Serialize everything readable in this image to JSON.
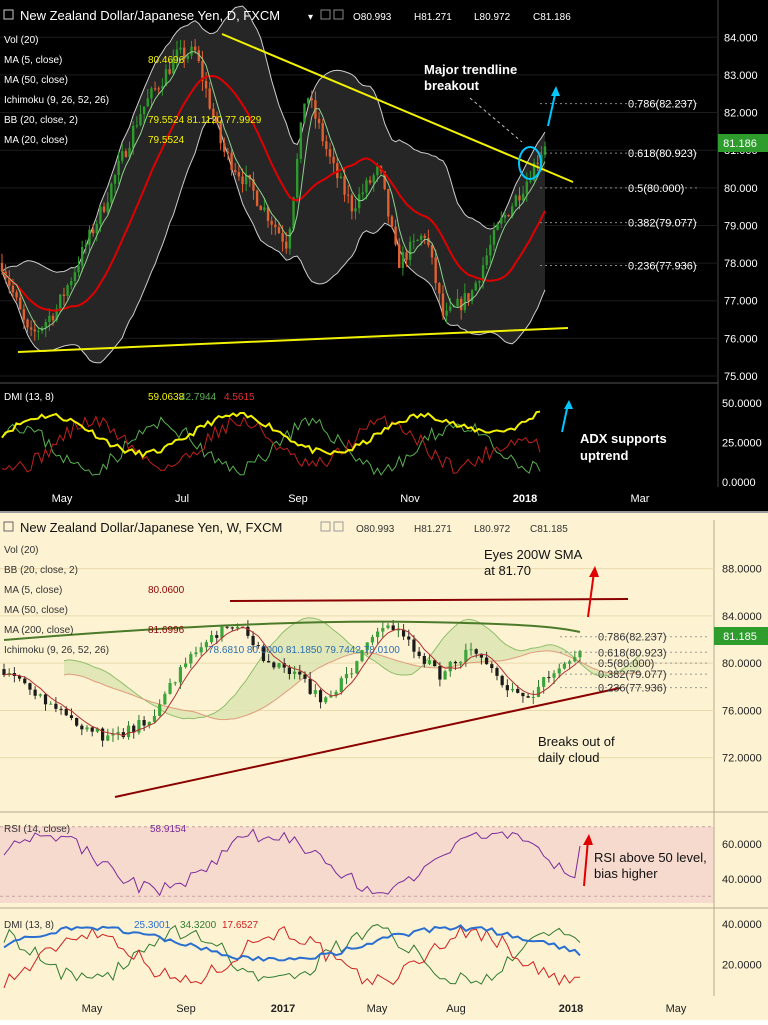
{
  "daily": {
    "title": "New Zealand Dollar/Japanese Yen, D, FXCM",
    "ohlc": {
      "open": "O80.993",
      "high": "H81.271",
      "low": "L80.972",
      "close": "C81.186"
    },
    "legend": [
      {
        "name": "Vol (20)",
        "value": ""
      },
      {
        "name": "MA (5, close)",
        "value": "80.4696"
      },
      {
        "name": "MA (50, close)",
        "value": ""
      },
      {
        "name": "Ichimoku (9, 26, 52, 26)",
        "value": ""
      },
      {
        "name": "BB (20, close, 2)",
        "value": "79.5524   81.1120   77.9929"
      },
      {
        "name": "MA (20, close)",
        "value": "79.5524"
      }
    ],
    "price_badge": "81.186",
    "annotations": {
      "breakout": "Major trendline breakout",
      "adx": "ADX supports uptrend"
    },
    "dmi_legend": {
      "name": "DMI (13, 8)",
      "v1": "59.0638",
      "v2": "42.7944",
      "v3": "4.5615"
    },
    "x_ticks": [
      "May",
      "Jul",
      "Sep",
      "Nov",
      "2018",
      "Mar"
    ],
    "y_ticks": [
      "84.000",
      "83.000",
      "82.000",
      "81.000",
      "80.000",
      "79.000",
      "78.000",
      "77.000",
      "76.000",
      "75.000"
    ],
    "dmi_ticks": [
      "50.0000",
      "25.0000",
      "0.0000"
    ]
  },
  "weekly": {
    "title": "New Zealand Dollar/Japanese Yen, W, FXCM",
    "ohlc": {
      "open": "O80.993",
      "high": "H81.271",
      "low": "L80.972",
      "close": "C81.185"
    },
    "legend": [
      {
        "name": "Vol (20)",
        "value": ""
      },
      {
        "name": "BB (20, close, 2)",
        "value": ""
      },
      {
        "name": "MA (5, close)",
        "value": "80.0600"
      },
      {
        "name": "MA (50, close)",
        "value": ""
      },
      {
        "name": "MA (200, close)",
        "value": "81.6996"
      },
      {
        "name": "Ichimoku (9, 26, 52, 26)",
        "value": "78.6810   80.0000   81.1850   79.7442   78.0100"
      }
    ],
    "price_badge": "81.185",
    "annotations": {
      "sma": "Eyes 200W SMA at 81.70",
      "cloud": "Breaks out of daily cloud",
      "rsi": "RSI above 50 level, bias higher"
    },
    "rsi_legend": {
      "name": "RSI (14, close)",
      "value": "58.9154"
    },
    "dmi_legend": {
      "name": "DMI (13, 8)",
      "v1": "25.3001",
      "v2": "34.3200",
      "v3": "17.6527"
    },
    "x_ticks": [
      "May",
      "Sep",
      "2017",
      "May",
      "Aug",
      "2018",
      "May"
    ],
    "y_ticks": [
      "88.0000",
      "84.0000",
      "80.0000",
      "76.0000",
      "72.0000"
    ],
    "rsi_ticks": [
      "60.0000",
      "40.0000"
    ],
    "dmi_ticks": [
      "40.0000",
      "20.0000"
    ]
  },
  "chart_data": [
    {
      "type": "candlestick",
      "title": "New Zealand Dollar/Japanese Yen, D, FXCM",
      "timeframe": "D",
      "ylim": [
        75,
        84.3
      ],
      "fib_levels": [
        {
          "label": "0.786(82.237)",
          "value": 82.237
        },
        {
          "label": "0.618(80.923)",
          "value": 80.923
        },
        {
          "label": "0.5(80.000)",
          "value": 80.0
        },
        {
          "label": "0.382(79.077)",
          "value": 79.077
        },
        {
          "label": "0.236(77.936)",
          "value": 77.936
        }
      ],
      "price_path": [
        [
          0,
          78.0
        ],
        [
          6,
          76.0
        ],
        [
          12,
          76.8
        ],
        [
          22,
          79.5
        ],
        [
          30,
          82.0
        ],
        [
          38,
          83.5
        ],
        [
          42,
          83.6
        ],
        [
          48,
          81.0
        ],
        [
          54,
          80.0
        ],
        [
          62,
          78.5
        ],
        [
          66,
          82.6
        ],
        [
          72,
          80.5
        ],
        [
          76,
          79.5
        ],
        [
          82,
          80.5
        ],
        [
          86,
          78.0
        ],
        [
          92,
          78.8
        ],
        [
          96,
          76.5
        ],
        [
          102,
          77.2
        ],
        [
          108,
          79.0
        ],
        [
          114,
          80.2
        ],
        [
          118,
          81.186
        ]
      ]
    },
    {
      "type": "candlestick",
      "title": "New Zealand Dollar/Japanese Yen, W, FXCM",
      "timeframe": "W",
      "ylim": [
        68,
        90
      ],
      "fib_levels": [
        {
          "label": "0.786(82.237)",
          "value": 82.237
        },
        {
          "label": "0.618(80.923)",
          "value": 80.923
        },
        {
          "label": "0.5(80.000)",
          "value": 80.0
        },
        {
          "label": "0.382(79.077)",
          "value": 79.077
        },
        {
          "label": "0.236(77.936)",
          "value": 77.936
        }
      ],
      "price_path": [
        [
          0,
          79.5
        ],
        [
          6,
          77.5
        ],
        [
          14,
          75.0
        ],
        [
          20,
          73.5
        ],
        [
          28,
          75.5
        ],
        [
          34,
          80.0
        ],
        [
          40,
          82.5
        ],
        [
          44,
          83.0
        ],
        [
          50,
          80.0
        ],
        [
          56,
          78.5
        ],
        [
          60,
          76.5
        ],
        [
          66,
          80.0
        ],
        [
          70,
          82.5
        ],
        [
          74,
          83.0
        ],
        [
          78,
          80.5
        ],
        [
          82,
          79.0
        ],
        [
          88,
          81.5
        ],
        [
          94,
          78.0
        ],
        [
          98,
          77.0
        ],
        [
          104,
          80.0
        ],
        [
          108,
          81.185
        ]
      ]
    }
  ],
  "colors": {
    "accent_cyan": "#00c8ff",
    "trendline_yellow": "#f2f200",
    "trendline_red": "#8b0000",
    "ma_red": "#e00000",
    "up_green": "#2c9a2c",
    "down_orange": "#e06030"
  }
}
